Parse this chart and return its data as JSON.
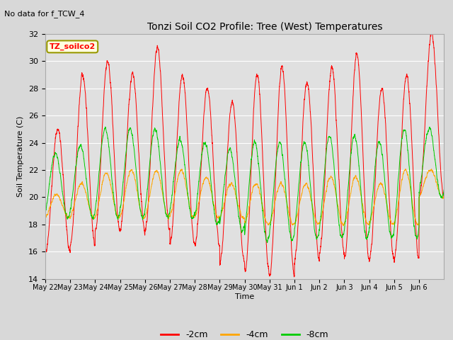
{
  "title": "Tonzi Soil CO2 Profile: Tree (West) Temperatures",
  "subtitle": "No data for f_TCW_4",
  "ylabel": "Soil Temperature (C)",
  "xlabel": "Time",
  "ylim": [
    14,
    32
  ],
  "legend_label": "TZ_soilco2",
  "series_labels": [
    "-2cm",
    "-4cm",
    "-8cm"
  ],
  "series_colors": [
    "#ff0000",
    "#ffa500",
    "#00cc00"
  ],
  "tick_labels": [
    "May 22",
    "May 23",
    "May 24",
    "May 25",
    "May 26",
    "May 27",
    "May 28",
    "May 29",
    "May 30",
    "May 31",
    "Jun 1",
    "Jun 2",
    "Jun 3",
    "Jun 4",
    "Jun 5",
    "Jun 6"
  ],
  "num_days": 16,
  "samples_per_day": 288,
  "depth_2cm_peaks": [
    25,
    29,
    30,
    29,
    31,
    29,
    28,
    27,
    29,
    29.5,
    28.5,
    29.5,
    30.5,
    28,
    29,
    32
  ],
  "depth_2cm_troughs": [
    16,
    16.5,
    17.5,
    17.5,
    17.5,
    16.5,
    16.5,
    15.2,
    14.3,
    14.3,
    15.5,
    16,
    15.5,
    15.5,
    15.5,
    20
  ],
  "depth_4cm_peaks": [
    20.2,
    21,
    21.8,
    22,
    22,
    22,
    21.5,
    21,
    21,
    21,
    21,
    21.5,
    21.5,
    21,
    22,
    22
  ],
  "depth_4cm_troughs": [
    18.5,
    18.5,
    18.5,
    18.5,
    18.5,
    18.5,
    18.5,
    18.5,
    18,
    18,
    18,
    18,
    18,
    18,
    18,
    20
  ],
  "depth_8cm_peaks": [
    23.2,
    23.8,
    25,
    25,
    25,
    24.2,
    24,
    23.5,
    24,
    24,
    24,
    24.5,
    24.5,
    24,
    25,
    25
  ],
  "depth_8cm_troughs": [
    18.5,
    18.5,
    18.5,
    18.5,
    18.5,
    18.5,
    18.0,
    17.5,
    16.8,
    16.8,
    17,
    17,
    17,
    17,
    17,
    20
  ],
  "noise_seed": 42
}
